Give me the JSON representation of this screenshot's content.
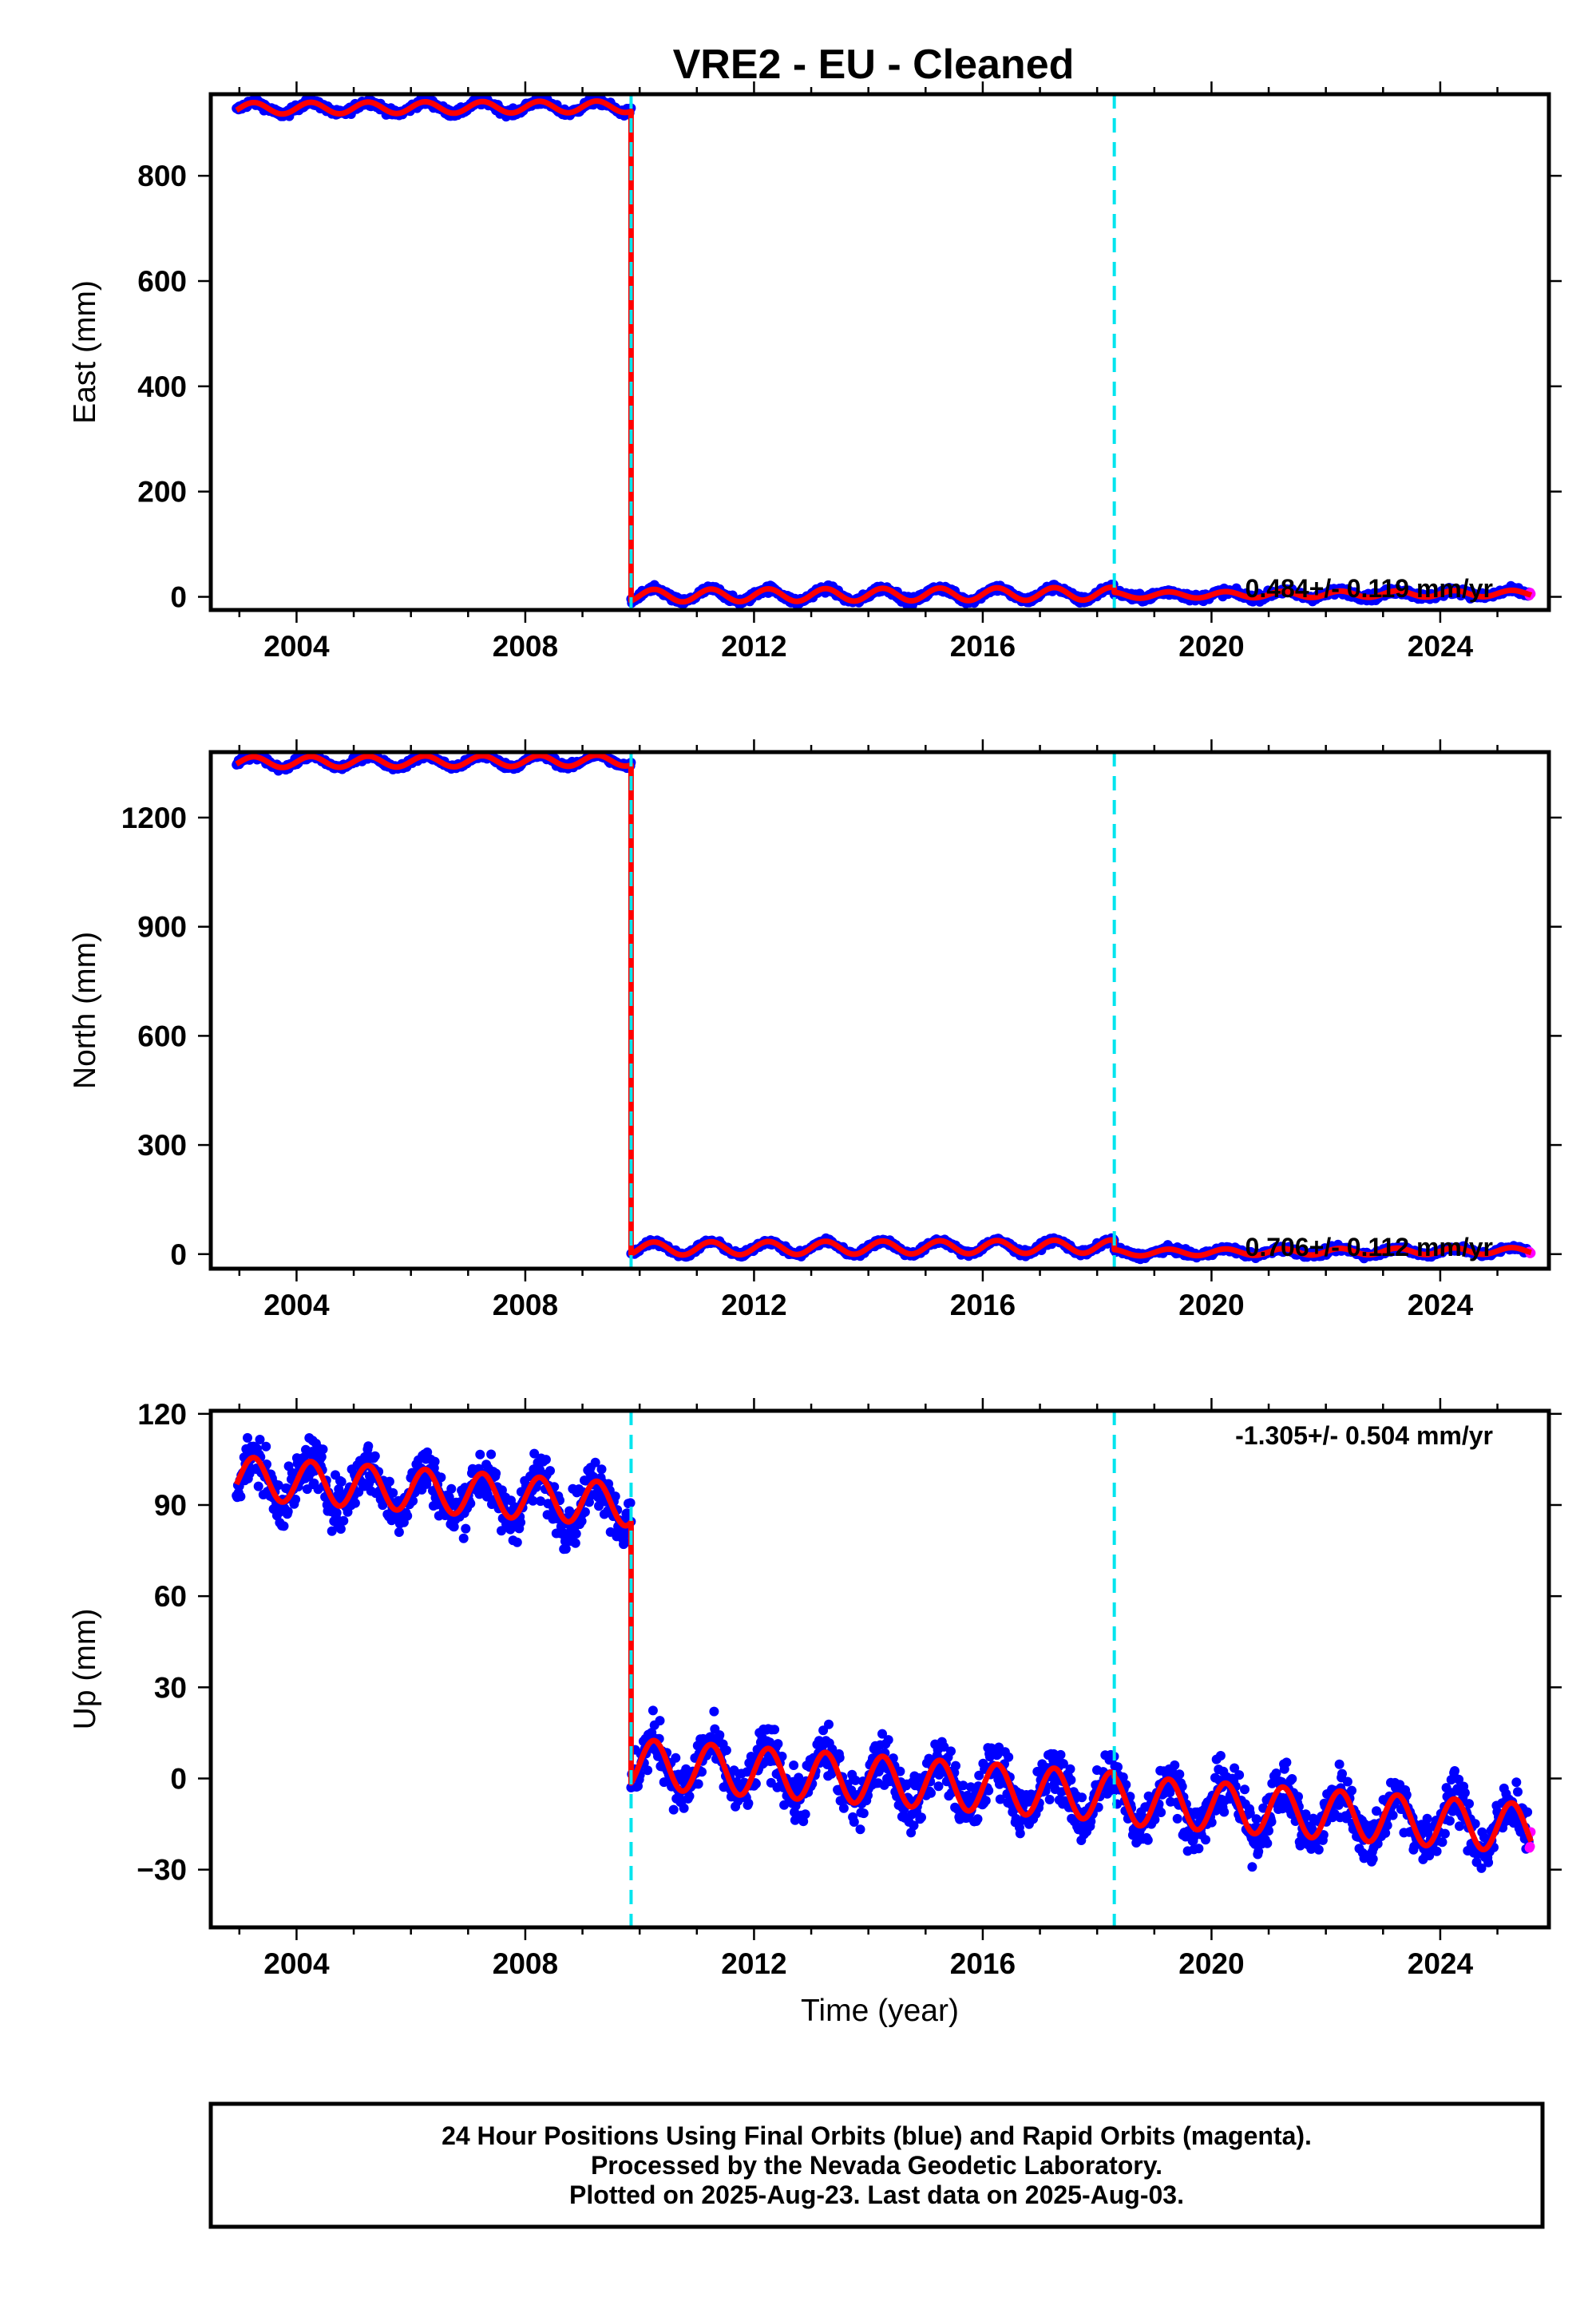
{
  "chart_data": {
    "title": "VRE2  - EU - Cleaned",
    "type": "scatter",
    "xlim": [
      2002.5,
      2025.9
    ],
    "x_ticks": [
      2004,
      2008,
      2012,
      2016,
      2020,
      2024
    ],
    "xlabel": "Time (year)",
    "data_start": 2002.95,
    "data_end": 2025.59,
    "offset_epochs": [
      2009.85,
      2018.3
    ],
    "colors": {
      "final_orbits": "#0000ff",
      "rapid_orbits": "#ff00ff",
      "model": "#ff0000",
      "offsets": "#00e5ee"
    },
    "panels": [
      {
        "id": "east",
        "ylabel": "East (mm)",
        "ylim": [
          -25,
          955
        ],
        "y_ticks": [
          0,
          200,
          400,
          600,
          800
        ],
        "y_tick_labels": [
          "0",
          "200",
          "400",
          "600",
          "800"
        ],
        "rate_text": "0.484+/- 0.119 mm/yr",
        "rate_position": "bottom-right",
        "segments": [
          {
            "start": 2002.95,
            "end": 2009.85,
            "level": 928,
            "slope": 0.48,
            "amplitude": 11,
            "noise": 5
          },
          {
            "start": 2009.85,
            "end": 2018.3,
            "level": 2,
            "slope": 0.48,
            "amplitude": 12,
            "noise": 5
          },
          {
            "start": 2018.3,
            "end": 2025.59,
            "level": 3,
            "slope": 0.48,
            "amplitude": 6,
            "noise": 5
          }
        ]
      },
      {
        "id": "north",
        "ylabel": "North (mm)",
        "ylim": [
          -40,
          1380
        ],
        "y_ticks": [
          0,
          300,
          600,
          900,
          1200
        ],
        "y_tick_labels": [
          "0",
          "300",
          "600",
          "900",
          "1200"
        ],
        "rate_text": "0.706+/- 0.112 mm/yr",
        "rate_position": "bottom-right",
        "segments": [
          {
            "start": 2002.95,
            "end": 2009.85,
            "level": 1352,
            "slope": 0.7,
            "amplitude": 15,
            "noise": 6
          },
          {
            "start": 2009.85,
            "end": 2018.3,
            "level": 15,
            "slope": 0.7,
            "amplitude": 18,
            "noise": 6
          },
          {
            "start": 2018.3,
            "end": 2025.59,
            "level": 4,
            "slope": 0.7,
            "amplitude": 9,
            "noise": 6
          }
        ]
      },
      {
        "id": "up",
        "ylabel": "Up (mm)",
        "ylim": [
          -49,
          121
        ],
        "y_ticks": [
          -30,
          0,
          30,
          60,
          90,
          120
        ],
        "y_tick_labels": [
          "−30",
          "0",
          "30",
          "60",
          "90",
          "120"
        ],
        "rate_text": "-1.305+/- 0.504 mm/yr",
        "rate_position": "top-right",
        "segments": [
          {
            "start": 2002.95,
            "end": 2009.85,
            "level": 99,
            "slope": -1.3,
            "amplitude": 7,
            "noise": 6
          },
          {
            "start": 2009.85,
            "end": 2018.3,
            "level": 5,
            "slope": -1.3,
            "amplitude": 8,
            "noise": 6
          },
          {
            "start": 2018.3,
            "end": 2025.59,
            "level": -7,
            "slope": -1.3,
            "amplitude": 8,
            "noise": 6
          }
        ]
      }
    ]
  },
  "footer": {
    "line1": "24 Hour Positions Using Final Orbits (blue) and Rapid Orbits (magenta).",
    "line2": "Processed by the Nevada Geodetic Laboratory.",
    "line3": "Plotted on 2025-Aug-23. Last data on 2025-Aug-03."
  }
}
